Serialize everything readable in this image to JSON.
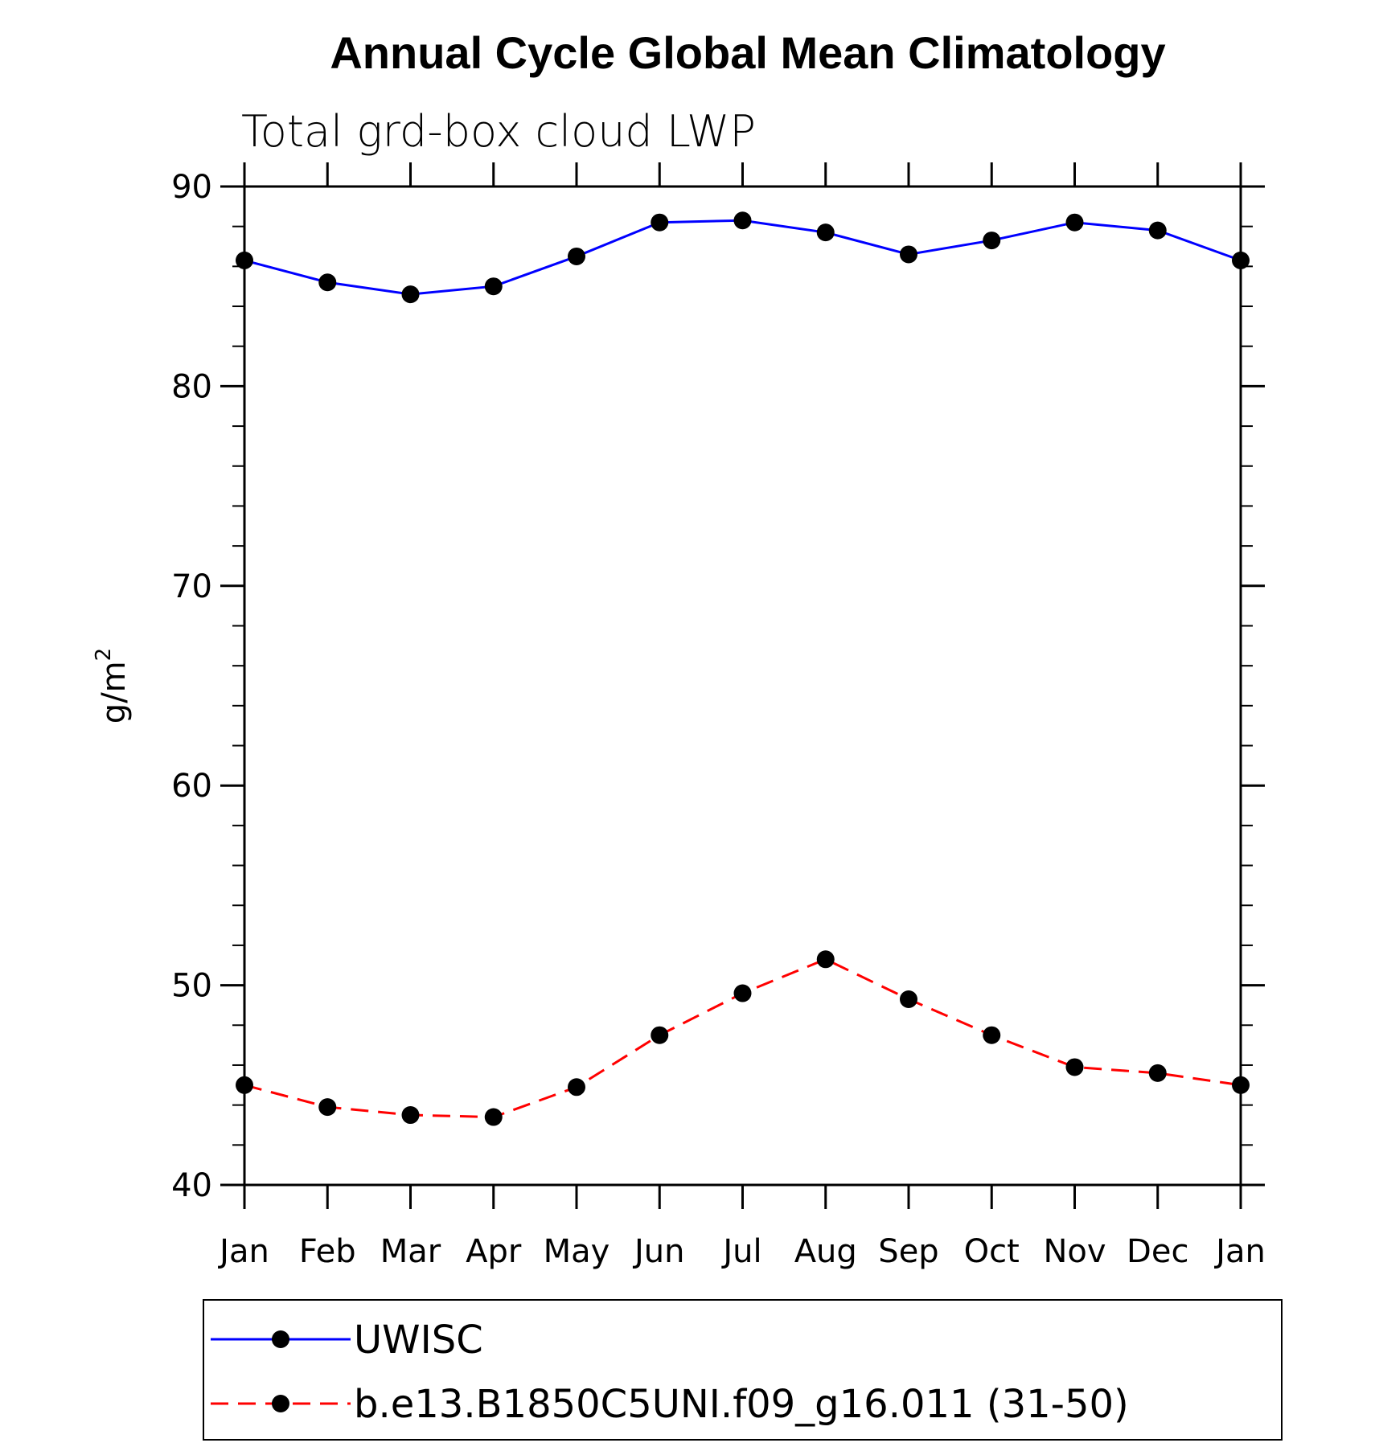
{
  "chart_data": {
    "type": "line",
    "title": "Annual Cycle Global Mean Climatology",
    "subtitle": "Total grd-box cloud LWP",
    "xlabel": "",
    "ylabel": "g/m",
    "ylabel_superscript": "2",
    "categories": [
      "Jan",
      "Feb",
      "Mar",
      "Apr",
      "May",
      "Jun",
      "Jul",
      "Aug",
      "Sep",
      "Oct",
      "Nov",
      "Dec",
      "Jan"
    ],
    "ylim": [
      40,
      90
    ],
    "yticks": [
      40,
      50,
      60,
      70,
      80,
      90
    ],
    "grid": false,
    "legend_position": "bottom",
    "series": [
      {
        "name": "UWISC",
        "color": "#0000ff",
        "dash": "solid",
        "values": [
          86.3,
          85.2,
          84.6,
          85.0,
          86.5,
          88.2,
          88.3,
          87.7,
          86.6,
          87.3,
          88.2,
          87.8,
          86.3
        ]
      },
      {
        "name": "b.e13.B1850C5UNI.f09_g16.011 (31-50)",
        "color": "#ff0000",
        "dash": "dashed",
        "values": [
          45.0,
          43.9,
          43.5,
          43.4,
          44.9,
          47.5,
          49.6,
          51.3,
          49.3,
          47.5,
          45.9,
          45.6,
          45.0
        ]
      }
    ]
  }
}
